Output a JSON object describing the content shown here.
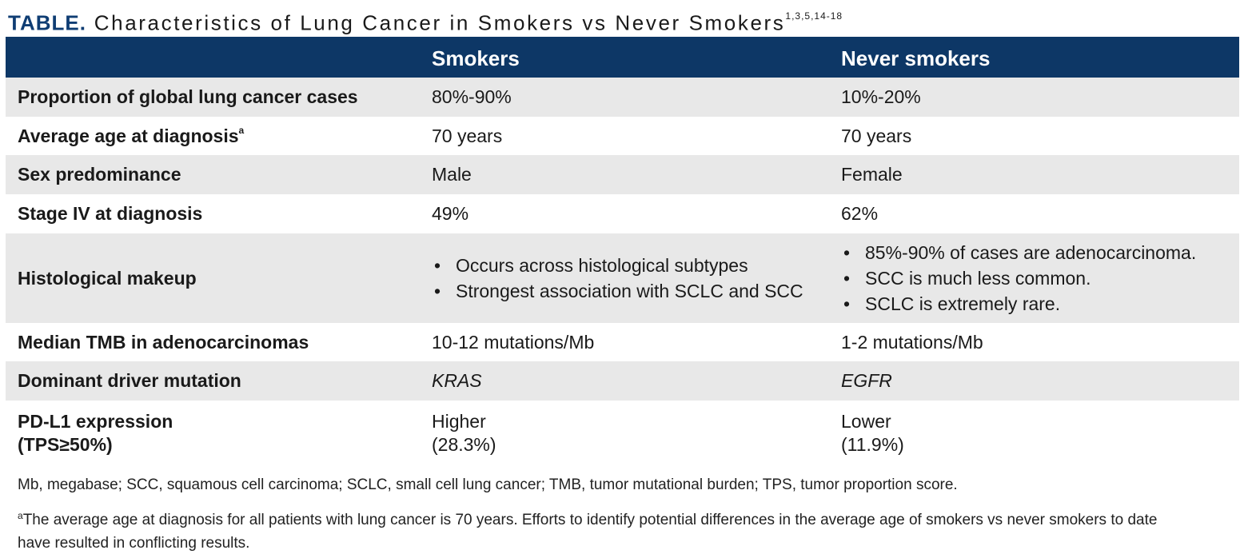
{
  "title": {
    "label": "TABLE.",
    "text": "Characteristics of Lung Cancer in Smokers vs Never Smokers",
    "refs": "1,3,5,14-18"
  },
  "header": {
    "col1": "",
    "col2": "Smokers",
    "col3": "Never smokers"
  },
  "rows": [
    {
      "label": "Proportion of global lung cancer cases",
      "smokers": "80%-90%",
      "never": "10%-20%"
    },
    {
      "label": "Average age at diagnosis",
      "label_sup": "a",
      "smokers": "70 years",
      "never": "70 years"
    },
    {
      "label": "Sex predominance",
      "smokers": "Male",
      "never": "Female"
    },
    {
      "label": "Stage IV at diagnosis",
      "smokers": "49%",
      "never": "62%"
    },
    {
      "label": "Histological makeup",
      "smokers_list": [
        "Occurs across histological subtypes",
        "Strongest association with SCLC and SCC"
      ],
      "never_list": [
        "85%-90% of cases are adenocarcinoma.",
        "SCC is much less common.",
        "SCLC is extremely rare."
      ]
    },
    {
      "label": "Median TMB in adenocarcinomas",
      "smokers": "10-12 mutations/Mb",
      "never": "1-2 mutations/Mb"
    },
    {
      "label": "Dominant driver mutation",
      "smokers": "KRAS",
      "never": "EGFR"
    },
    {
      "label_line1": "PD-L1 expression",
      "label_line2": "(TPS≥50%)",
      "smokers_line1": "Higher",
      "smokers_line2": "(28.3%)",
      "never_line1": "Lower",
      "never_line2": "(11.9%)"
    }
  ],
  "footnotes": {
    "abbreviations": "Mb, megabase; SCC, squamous cell carcinoma; SCLC, small cell lung cancer; TMB, tumor mutational burden; TPS, tumor proportion score.",
    "note_marker": "a",
    "note": "The average age at diagnosis for all patients with lung cancer is 70 years. Efforts to identify potential differences in the average age of smokers vs never smokers to date have resulted in conflicting results."
  }
}
